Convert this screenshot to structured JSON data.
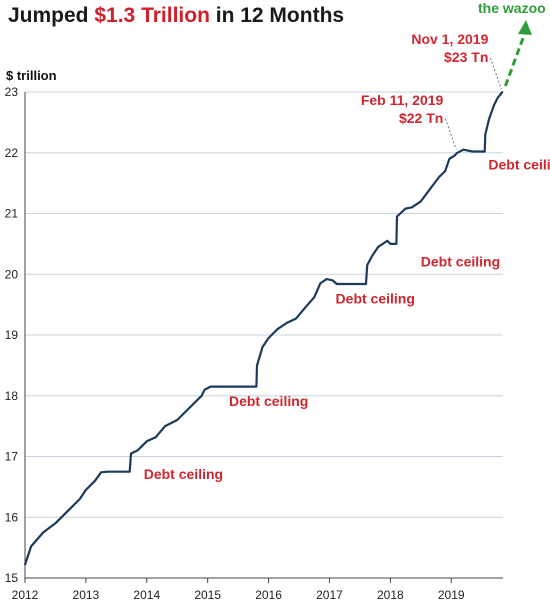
{
  "title": {
    "prefix": "Jumped ",
    "highlight": "$1.3 Trillion",
    "suffix": " in 12 Months"
  },
  "top_note": "the wazoo",
  "chart_data": {
    "type": "line",
    "ylabel": "$ trillion",
    "xlabel": "",
    "ylim": [
      15,
      23
    ],
    "xlim": [
      2012,
      2019.85
    ],
    "y_ticks": [
      "15",
      "16",
      "17",
      "18",
      "19",
      "20",
      "21",
      "22",
      "23"
    ],
    "x_ticks": [
      "2012",
      "2013",
      "2014",
      "2015",
      "2016",
      "2017",
      "2018",
      "2019"
    ],
    "grid": "horizontal",
    "colors": {
      "line": "#1b3a5c",
      "annotation": "#d0262f",
      "arrow": "#2e9e3a",
      "grid": "#c8d3dd"
    },
    "series": [
      {
        "points": [
          [
            2012.0,
            15.22
          ],
          [
            2012.1,
            15.52
          ],
          [
            2012.3,
            15.75
          ],
          [
            2012.5,
            15.9
          ],
          [
            2012.7,
            16.1
          ],
          [
            2012.9,
            16.3
          ],
          [
            2013.0,
            16.45
          ],
          [
            2013.15,
            16.6
          ],
          [
            2013.25,
            16.74
          ],
          [
            2013.35,
            16.75
          ],
          [
            2013.72,
            16.75
          ],
          [
            2013.74,
            17.05
          ],
          [
            2013.85,
            17.1
          ],
          [
            2014.0,
            17.25
          ],
          [
            2014.15,
            17.32
          ],
          [
            2014.3,
            17.5
          ],
          [
            2014.5,
            17.6
          ],
          [
            2014.7,
            17.8
          ],
          [
            2014.9,
            18.0
          ],
          [
            2014.95,
            18.1
          ],
          [
            2015.05,
            18.15
          ],
          [
            2015.15,
            18.15
          ],
          [
            2015.8,
            18.15
          ],
          [
            2015.81,
            18.5
          ],
          [
            2015.9,
            18.8
          ],
          [
            2016.0,
            18.95
          ],
          [
            2016.15,
            19.1
          ],
          [
            2016.3,
            19.2
          ],
          [
            2016.45,
            19.27
          ],
          [
            2016.6,
            19.45
          ],
          [
            2016.75,
            19.62
          ],
          [
            2016.85,
            19.85
          ],
          [
            2016.95,
            19.92
          ],
          [
            2017.05,
            19.9
          ],
          [
            2017.12,
            19.84
          ],
          [
            2017.6,
            19.84
          ],
          [
            2017.62,
            20.15
          ],
          [
            2017.7,
            20.3
          ],
          [
            2017.8,
            20.45
          ],
          [
            2017.95,
            20.55
          ],
          [
            2018.0,
            20.5
          ],
          [
            2018.1,
            20.5
          ],
          [
            2018.11,
            20.95
          ],
          [
            2018.25,
            21.08
          ],
          [
            2018.35,
            21.1
          ],
          [
            2018.5,
            21.2
          ],
          [
            2018.65,
            21.4
          ],
          [
            2018.8,
            21.6
          ],
          [
            2018.9,
            21.7
          ],
          [
            2018.97,
            21.9
          ],
          [
            2019.05,
            21.95
          ],
          [
            2019.1,
            22.0
          ],
          [
            2019.2,
            22.05
          ],
          [
            2019.35,
            22.02
          ],
          [
            2019.55,
            22.02
          ],
          [
            2019.56,
            22.3
          ],
          [
            2019.62,
            22.55
          ],
          [
            2019.7,
            22.78
          ],
          [
            2019.76,
            22.9
          ],
          [
            2019.84,
            23.0
          ]
        ]
      }
    ],
    "annotations": [
      {
        "text": "Debt ceiling",
        "x": 2013.95,
        "y": 16.71
      },
      {
        "text": "Debt ceiling",
        "x": 2015.35,
        "y": 17.91
      },
      {
        "text": "Debt ceiling",
        "x": 2017.1,
        "y": 19.6
      },
      {
        "text": "Debt ceiling",
        "x": 2018.5,
        "y": 20.21
      },
      {
        "text": "Debt ceiling",
        "x": 2019.61,
        "y": 21.81
      }
    ],
    "callouts": [
      {
        "date": "Feb 11, 2019",
        "value": "$22 Tn",
        "x": 2019.1,
        "y": 22.0
      },
      {
        "date": "Nov 1, 2019",
        "value": "$23 Tn",
        "x": 2019.84,
        "y": 23.0
      }
    ]
  }
}
